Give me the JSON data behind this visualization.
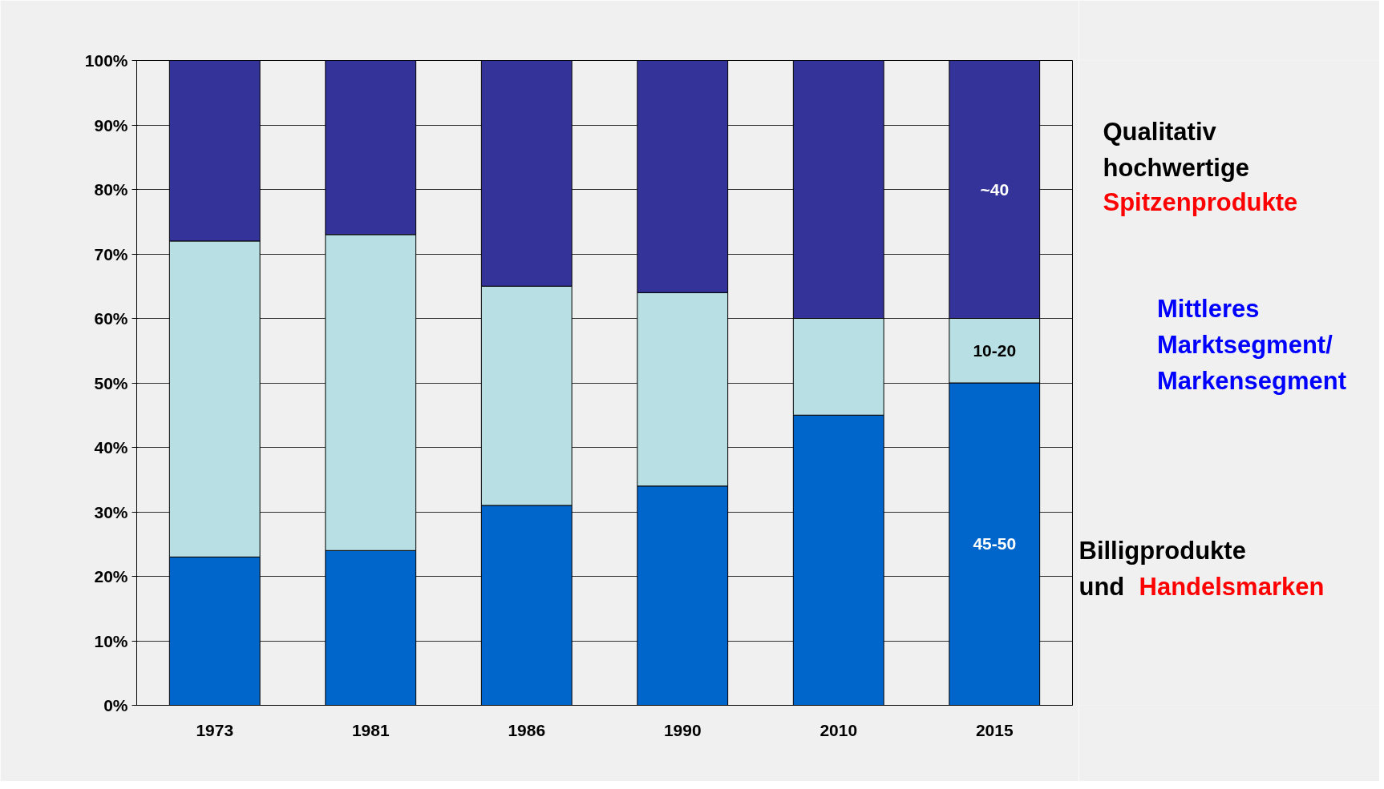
{
  "chart_data": {
    "type": "bar",
    "stacked": true,
    "categories": [
      "1973",
      "1981",
      "1986",
      "1990",
      "2010",
      "2015"
    ],
    "series": [
      {
        "color": "#0066cc",
        "values": [
          23,
          24,
          31,
          34,
          45,
          50
        ]
      },
      {
        "color": "#b8e0e4",
        "values": [
          49,
          49,
          34,
          30,
          15,
          10
        ]
      },
      {
        "color": "#333399",
        "values": [
          28,
          27,
          35,
          36,
          40,
          40
        ]
      }
    ],
    "ylim": [
      0,
      100
    ],
    "yticks": [
      {
        "value": 0,
        "label": "0%"
      },
      {
        "value": 10,
        "label": "10%"
      },
      {
        "value": 20,
        "label": "20%"
      },
      {
        "value": 30,
        "label": "30%"
      },
      {
        "value": 40,
        "label": "40%"
      },
      {
        "value": 50,
        "label": "50%"
      },
      {
        "value": 60,
        "label": "60%"
      },
      {
        "value": 70,
        "label": "70%"
      },
      {
        "value": 80,
        "label": "80%"
      },
      {
        "value": 90,
        "label": "90%"
      },
      {
        "value": 100,
        "label": "100%"
      }
    ],
    "grid": "y",
    "annotations": [
      "~40",
      "10-20",
      "45-50",
      "Qualitativ hochwertige",
      "Spitzenprodukte",
      "Mittleres Marktsegment/ Markensegment",
      "Billigprodukte und",
      "Handelsmarken"
    ]
  }
}
